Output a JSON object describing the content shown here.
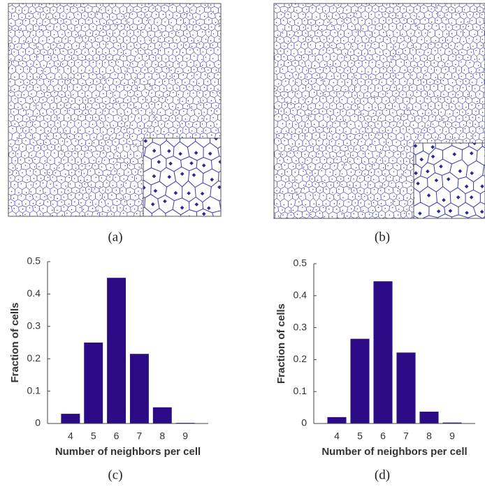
{
  "panels": [
    {
      "label": "(a)"
    },
    {
      "label": "(b)"
    },
    {
      "label": "(c)"
    },
    {
      "label": "(d)"
    }
  ],
  "chart_data": [
    {
      "type": "bar",
      "xlabel": "Number of neighbors per cell",
      "ylabel": "Fraction of cells",
      "categories": [
        "4",
        "5",
        "6",
        "7",
        "8",
        "9"
      ],
      "values": [
        0.03,
        0.25,
        0.45,
        0.215,
        0.05,
        0.002
      ],
      "color": "#2c0c86",
      "ylim": [
        0,
        0.5
      ],
      "yticks": [
        0,
        0.1,
        0.2,
        0.3,
        0.4,
        0.5
      ],
      "grid": false
    },
    {
      "type": "bar",
      "xlabel": "Number of neighbors per cell",
      "ylabel": "Fraction of cells",
      "categories": [
        "4",
        "5",
        "6",
        "7",
        "8",
        "9"
      ],
      "values": [
        0.02,
        0.265,
        0.445,
        0.222,
        0.037,
        0.003
      ],
      "color": "#2c0c86",
      "ylim": [
        0,
        0.5
      ],
      "yticks": [
        0,
        0.1,
        0.2,
        0.3,
        0.4,
        0.5
      ],
      "grid": false
    }
  ]
}
